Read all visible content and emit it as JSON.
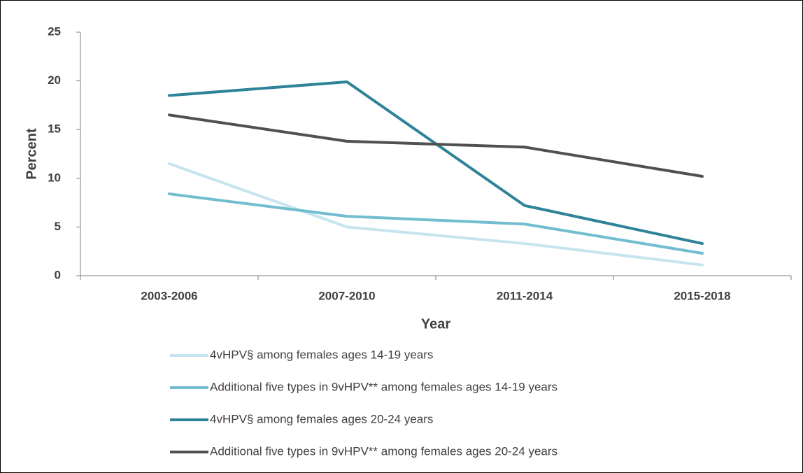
{
  "chart_data": {
    "type": "line",
    "x_label": "Year",
    "y_label": "Percent",
    "categories": [
      "2003-2006",
      "2007-2010",
      "2011-2014",
      "2015-2018"
    ],
    "ylim": [
      0,
      25
    ],
    "yticks": [
      0,
      5,
      10,
      15,
      20,
      25
    ],
    "legend": "bottom",
    "series": [
      {
        "name": "4vHPV§ among females ages 14-19 years",
        "color": "#c6e5ee",
        "values": [
          11.5,
          5.0,
          3.3,
          1.1
        ]
      },
      {
        "name": "Additional five types in 9vHPV** among females ages 14-19 years",
        "color": "#72bdd0",
        "values": [
          8.4,
          6.1,
          5.3,
          2.3
        ]
      },
      {
        "name": "4vHPV§ among females ages 20-24 years",
        "color": "#2f8399",
        "values": [
          18.5,
          19.9,
          7.2,
          3.3
        ]
      },
      {
        "name": "Additional five types in 9vHPV** among females ages 20-24 years",
        "color": "#505050",
        "values": [
          16.5,
          13.8,
          13.2,
          10.2
        ]
      }
    ]
  }
}
